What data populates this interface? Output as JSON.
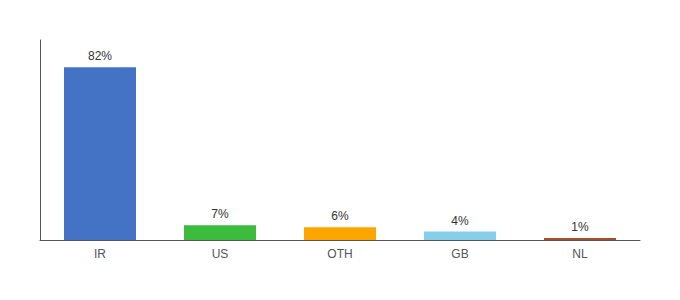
{
  "chart_data": {
    "type": "bar",
    "categories": [
      "IR",
      "US",
      "OTH",
      "GB",
      "NL"
    ],
    "values": [
      82,
      7,
      6,
      4,
      1
    ],
    "value_labels": [
      "82%",
      "7%",
      "6%",
      "4%",
      "1%"
    ],
    "colors": [
      "#4472c4",
      "#3dbb3d",
      "#ffa500",
      "#87ceeb",
      "#a0522d"
    ],
    "ylim": [
      0,
      95
    ],
    "grid": false,
    "tick_labels": "x",
    "data_labels": true
  }
}
